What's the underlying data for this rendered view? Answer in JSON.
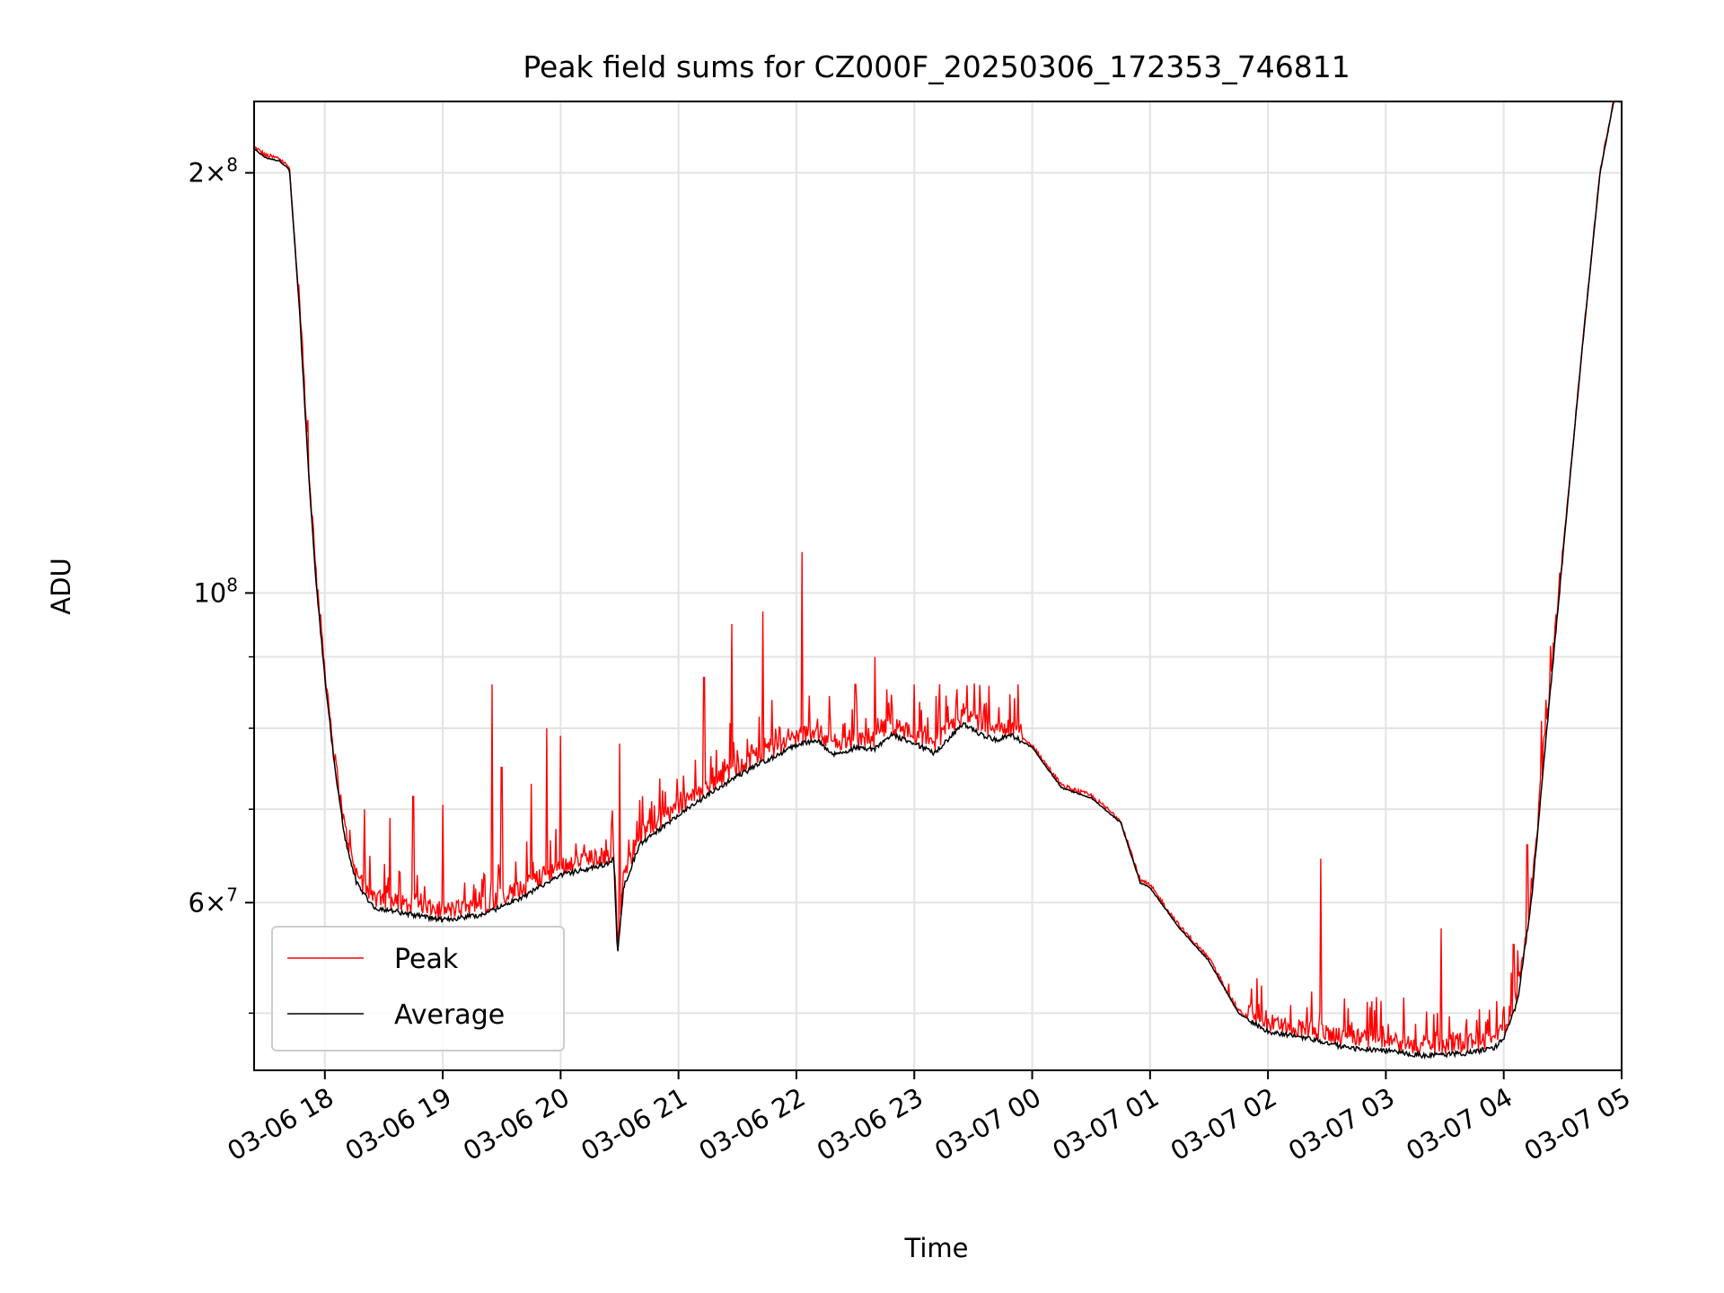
{
  "chart_data": {
    "type": "line",
    "title": "Peak field sums for CZ000F_20250306_172353_746811",
    "xlabel": "Time",
    "ylabel": "ADU",
    "y_scale": "log",
    "xlim": [
      "2025-03-06 17:24",
      "2025-03-07 05:00"
    ],
    "ylim": [
      45500000,
      225000000
    ],
    "grid": true,
    "legend_position": "lower-left",
    "x_ticks": [
      {
        "t": "2025-03-06 18:00",
        "label": "03-06 18"
      },
      {
        "t": "2025-03-06 19:00",
        "label": "03-06 19"
      },
      {
        "t": "2025-03-06 20:00",
        "label": "03-06 20"
      },
      {
        "t": "2025-03-06 21:00",
        "label": "03-06 21"
      },
      {
        "t": "2025-03-06 22:00",
        "label": "03-06 22"
      },
      {
        "t": "2025-03-06 23:00",
        "label": "03-06 23"
      },
      {
        "t": "2025-03-07 00:00",
        "label": "03-07 00"
      },
      {
        "t": "2025-03-07 01:00",
        "label": "03-07 01"
      },
      {
        "t": "2025-03-07 02:00",
        "label": "03-07 02"
      },
      {
        "t": "2025-03-07 03:00",
        "label": "03-07 03"
      },
      {
        "t": "2025-03-07 04:00",
        "label": "03-07 04"
      },
      {
        "t": "2025-03-07 05:00",
        "label": "03-07 05"
      }
    ],
    "y_major_ticks": [
      {
        "value": 60000000,
        "mant": "6",
        "exp": "7",
        "times": true
      },
      {
        "value": 100000000,
        "mant": "10",
        "exp": "8",
        "times": false
      },
      {
        "value": 200000000,
        "mant": "2",
        "exp": "8",
        "times": true
      }
    ],
    "y_minor_ticks": [
      50000000,
      70000000,
      80000000,
      90000000
    ],
    "series": [
      {
        "name": "Average",
        "color": "#000000",
        "points": [
          [
            "2025-03-06 17:24",
            208000000
          ],
          [
            "2025-03-06 17:30",
            205000000
          ],
          [
            "2025-03-06 17:37",
            204000000
          ],
          [
            "2025-03-06 17:42",
            201000000
          ],
          [
            "2025-03-06 17:47",
            160000000
          ],
          [
            "2025-03-06 17:52",
            120000000
          ],
          [
            "2025-03-06 17:56",
            100000000
          ],
          [
            "2025-03-06 18:00",
            87000000
          ],
          [
            "2025-03-06 18:05",
            75000000
          ],
          [
            "2025-03-06 18:10",
            67000000
          ],
          [
            "2025-03-06 18:16",
            62000000
          ],
          [
            "2025-03-06 18:25",
            59500000
          ],
          [
            "2025-03-06 18:40",
            59000000
          ],
          [
            "2025-03-06 19:00",
            58300000
          ],
          [
            "2025-03-06 19:20",
            58800000
          ],
          [
            "2025-03-06 19:40",
            60500000
          ],
          [
            "2025-03-06 20:00",
            62800000
          ],
          [
            "2025-03-06 20:25",
            64000000
          ],
          [
            "2025-03-06 20:27",
            64800000
          ],
          [
            "2025-03-06 20:29",
            55000000
          ],
          [
            "2025-03-06 20:32",
            61500000
          ],
          [
            "2025-03-06 20:40",
            66000000
          ],
          [
            "2025-03-06 21:00",
            69300000
          ],
          [
            "2025-03-06 21:20",
            72500000
          ],
          [
            "2025-03-06 21:40",
            75300000
          ],
          [
            "2025-03-06 22:00",
            77800000
          ],
          [
            "2025-03-06 22:10",
            78500000
          ],
          [
            "2025-03-06 22:20",
            76500000
          ],
          [
            "2025-03-06 22:30",
            77500000
          ],
          [
            "2025-03-06 22:40",
            77300000
          ],
          [
            "2025-03-06 22:48",
            79200000
          ],
          [
            "2025-03-06 23:00",
            78000000
          ],
          [
            "2025-03-06 23:10",
            76800000
          ],
          [
            "2025-03-06 23:25",
            80500000
          ],
          [
            "2025-03-06 23:35",
            79000000
          ],
          [
            "2025-03-06 23:42",
            78500000
          ],
          [
            "2025-03-06 23:50",
            79000000
          ],
          [
            "2025-03-07 00:00",
            77500000
          ],
          [
            "2025-03-07 00:15",
            72500000
          ],
          [
            "2025-03-07 00:30",
            71300000
          ],
          [
            "2025-03-07 00:45",
            68500000
          ],
          [
            "2025-03-07 00:55",
            62000000
          ],
          [
            "2025-03-07 01:00",
            61500000
          ],
          [
            "2025-03-07 01:15",
            57500000
          ],
          [
            "2025-03-07 01:30",
            54500000
          ],
          [
            "2025-03-07 01:45",
            50000000
          ],
          [
            "2025-03-07 02:00",
            48500000
          ],
          [
            "2025-03-07 02:20",
            48000000
          ],
          [
            "2025-03-07 02:40",
            47200000
          ],
          [
            "2025-03-07 03:00",
            47000000
          ],
          [
            "2025-03-07 03:20",
            46600000
          ],
          [
            "2025-03-07 03:40",
            46800000
          ],
          [
            "2025-03-07 03:55",
            47200000
          ],
          [
            "2025-03-07 04:00",
            47900000
          ],
          [
            "2025-03-07 04:07",
            51000000
          ],
          [
            "2025-03-07 04:14",
            60000000
          ],
          [
            "2025-03-07 04:22",
            80000000
          ],
          [
            "2025-03-07 04:31",
            110000000
          ],
          [
            "2025-03-07 04:40",
            150000000
          ],
          [
            "2025-03-07 04:49",
            200000000
          ],
          [
            "2025-03-07 04:56",
            225000000
          ],
          [
            "2025-03-07 05:00",
            225000000
          ]
        ]
      },
      {
        "name": "Peak",
        "color": "#ff0000",
        "spikes": [
          [
            "2025-03-06 18:08",
            69500000
          ],
          [
            "2025-03-06 18:20",
            70000000
          ],
          [
            "2025-03-06 18:33",
            69000000
          ],
          [
            "2025-03-06 18:45",
            71500000
          ],
          [
            "2025-03-06 19:00",
            70500000
          ],
          [
            "2025-03-06 19:25",
            86000000
          ],
          [
            "2025-03-06 19:30",
            75000000
          ],
          [
            "2025-03-06 19:45",
            73000000
          ],
          [
            "2025-03-06 19:53",
            80000000
          ],
          [
            "2025-03-06 20:00",
            79000000
          ],
          [
            "2025-03-06 20:30",
            78000000
          ],
          [
            "2025-03-06 21:13",
            87000000
          ],
          [
            "2025-03-06 21:27",
            95000000
          ],
          [
            "2025-03-06 21:43",
            97000000
          ],
          [
            "2025-03-06 22:03",
            107000000
          ],
          [
            "2025-03-06 22:30",
            86000000
          ],
          [
            "2025-03-06 22:40",
            90000000
          ],
          [
            "2025-03-06 23:00",
            86000000
          ],
          [
            "2025-03-06 23:13",
            86000000
          ],
          [
            "2025-03-06 23:53",
            86000000
          ],
          [
            "2025-03-07 01:40",
            52500000
          ],
          [
            "2025-03-07 02:20",
            50500000
          ],
          [
            "2025-03-07 02:27",
            64500000
          ],
          [
            "2025-03-07 02:53",
            51000000
          ],
          [
            "2025-03-07 03:28",
            57500000
          ],
          [
            "2025-03-07 03:41",
            49500000
          ],
          [
            "2025-03-07 04:05",
            56000000
          ],
          [
            "2025-03-07 04:12",
            66000000
          ],
          [
            "2025-03-07 04:19",
            81000000
          ]
        ]
      }
    ]
  }
}
